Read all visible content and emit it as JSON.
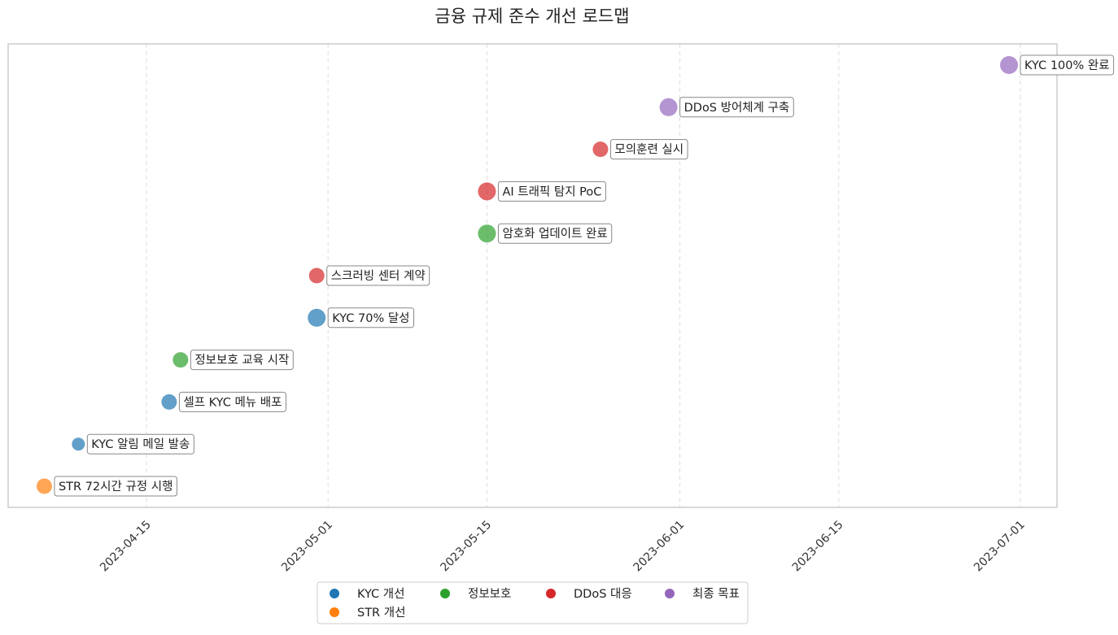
{
  "chart_data": {
    "type": "scatter",
    "title": "금융 규제 준수 개선 로드맵",
    "xlabel": "",
    "ylabel": "",
    "x_axis": {
      "type": "date",
      "range": [
        "2023-04-02",
        "2023-07-05"
      ],
      "ticks": [
        "2023-04-15",
        "2023-05-01",
        "2023-05-15",
        "2023-06-01",
        "2023-06-15",
        "2023-07-01"
      ]
    },
    "grid": {
      "x": true,
      "y": false,
      "style": "dashed"
    },
    "legend": {
      "placement": "bottom-center",
      "entries": [
        {
          "name": "KYC 개선",
          "color": "#1f77b4"
        },
        {
          "name": "정보보호",
          "color": "#2ca02c"
        },
        {
          "name": "DDoS 대응",
          "color": "#d62728"
        },
        {
          "name": "최종 목표",
          "color": "#9467bd"
        },
        {
          "name": "STR 개선",
          "color": "#ff7f0e"
        }
      ]
    },
    "series": [
      {
        "name": "STR 개선",
        "color": "#ff7f0e",
        "points": [
          {
            "date": "2023-04-06",
            "label": "STR 72시간 규정 시행",
            "size": "medium"
          }
        ]
      },
      {
        "name": "KYC 개선",
        "color": "#1f77b4",
        "points": [
          {
            "date": "2023-04-09",
            "label": "KYC 알림 메일 발송",
            "size": "small"
          },
          {
            "date": "2023-04-17",
            "label": "셀프 KYC 메뉴 배포",
            "size": "medium"
          },
          {
            "date": "2023-04-30",
            "label": "KYC 70% 달성",
            "size": "large"
          }
        ]
      },
      {
        "name": "정보보호",
        "color": "#2ca02c",
        "points": [
          {
            "date": "2023-04-18",
            "label": "정보보호 교육 시작",
            "size": "medium"
          },
          {
            "date": "2023-05-15",
            "label": "암호화 업데이트 완료",
            "size": "large"
          }
        ]
      },
      {
        "name": "DDoS 대응",
        "color": "#d62728",
        "points": [
          {
            "date": "2023-04-30",
            "label": "스크러빙 센터 계약",
            "size": "medium"
          },
          {
            "date": "2023-05-15",
            "label": "AI 트래픽 탐지 PoC",
            "size": "large"
          },
          {
            "date": "2023-05-25",
            "label": "모의훈련 실시",
            "size": "medium"
          }
        ]
      },
      {
        "name": "최종 목표",
        "color": "#9467bd",
        "points": [
          {
            "date": "2023-05-31",
            "label": "DDoS 방어체계 구축",
            "size": "large"
          },
          {
            "date": "2023-06-30",
            "label": "KYC 100% 완료",
            "size": "large"
          }
        ]
      }
    ]
  }
}
